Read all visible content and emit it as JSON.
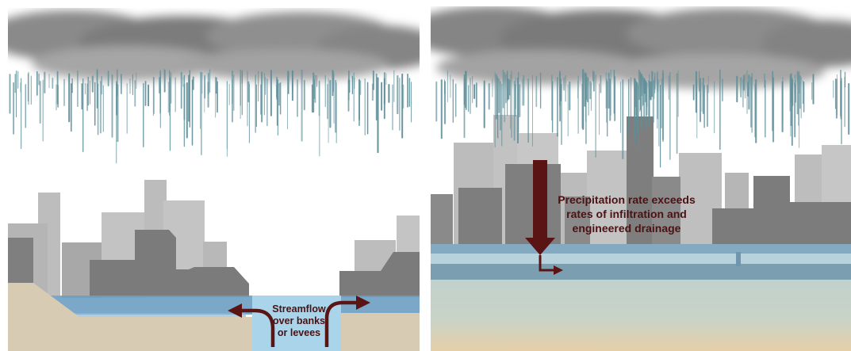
{
  "left_panel": {
    "label_lines": [
      "Streamflow",
      "over banks",
      "or levees"
    ]
  },
  "right_panel": {
    "label_lines": [
      "Precipitation rate exceeds",
      "rates of infiltration and",
      "engineered drainage"
    ]
  },
  "colors": {
    "cloud": "#8c8c8c",
    "rain": "#5f8f99",
    "building_light": "#bdbdbd",
    "building_mid": "#a9a9a9",
    "building_dark": "#7d7d7d",
    "ground_tan": "#d8cbb3",
    "water": "#6d9fc3",
    "river": "#a9d4ea",
    "arrow": "#5a1414"
  }
}
